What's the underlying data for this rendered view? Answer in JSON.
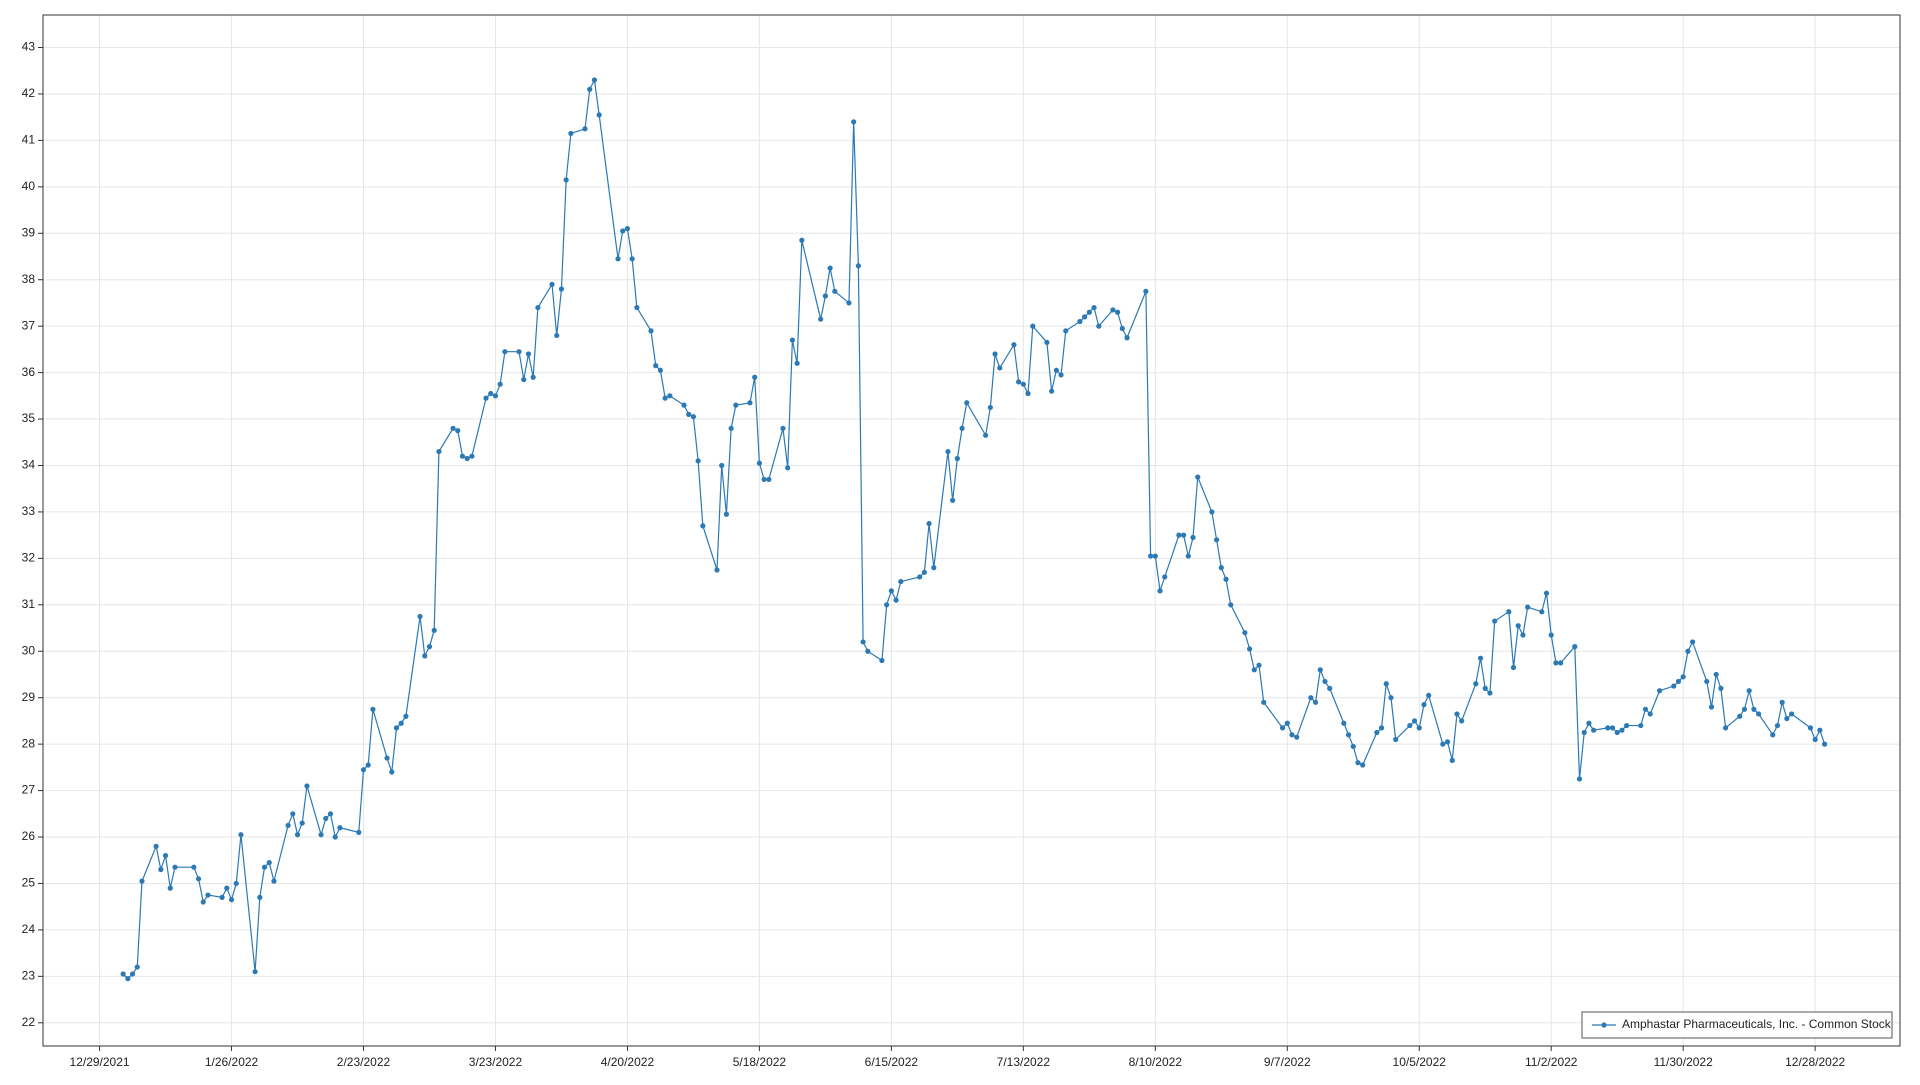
{
  "chart_data": {
    "type": "line",
    "x": [
      "1/3/2022",
      "1/4/2022",
      "1/5/2022",
      "1/6/2022",
      "1/7/2022",
      "1/10/2022",
      "1/11/2022",
      "1/12/2022",
      "1/13/2022",
      "1/14/2022",
      "1/18/2022",
      "1/19/2022",
      "1/20/2022",
      "1/21/2022",
      "1/24/2022",
      "1/25/2022",
      "1/26/2022",
      "1/27/2022",
      "1/28/2022",
      "1/31/2022",
      "2/1/2022",
      "2/2/2022",
      "2/3/2022",
      "2/4/2022",
      "2/7/2022",
      "2/8/2022",
      "2/9/2022",
      "2/10/2022",
      "2/11/2022",
      "2/14/2022",
      "2/15/2022",
      "2/16/2022",
      "2/17/2022",
      "2/18/2022",
      "2/22/2022",
      "2/23/2022",
      "2/24/2022",
      "2/25/2022",
      "2/28/2022",
      "3/1/2022",
      "3/2/2022",
      "3/3/2022",
      "3/4/2022",
      "3/7/2022",
      "3/8/2022",
      "3/9/2022",
      "3/10/2022",
      "3/11/2022",
      "3/14/2022",
      "3/15/2022",
      "3/16/2022",
      "3/17/2022",
      "3/18/2022",
      "3/21/2022",
      "3/22/2022",
      "3/23/2022",
      "3/24/2022",
      "3/25/2022",
      "3/28/2022",
      "3/29/2022",
      "3/30/2022",
      "3/31/2022",
      "4/1/2022",
      "4/4/2022",
      "4/5/2022",
      "4/6/2022",
      "4/7/2022",
      "4/8/2022",
      "4/11/2022",
      "4/12/2022",
      "4/13/2022",
      "4/14/2022",
      "4/18/2022",
      "4/19/2022",
      "4/20/2022",
      "4/21/2022",
      "4/22/2022",
      "4/25/2022",
      "4/26/2022",
      "4/27/2022",
      "4/28/2022",
      "4/29/2022",
      "5/2/2022",
      "5/3/2022",
      "5/4/2022",
      "5/5/2022",
      "5/6/2022",
      "5/9/2022",
      "5/10/2022",
      "5/11/2022",
      "5/12/2022",
      "5/13/2022",
      "5/16/2022",
      "5/17/2022",
      "5/18/2022",
      "5/19/2022",
      "5/20/2022",
      "5/23/2022",
      "5/24/2022",
      "5/25/2022",
      "5/26/2022",
      "5/27/2022",
      "5/31/2022",
      "6/1/2022",
      "6/2/2022",
      "6/3/2022",
      "6/6/2022",
      "6/7/2022",
      "6/8/2022",
      "6/9/2022",
      "6/10/2022",
      "6/13/2022",
      "6/14/2022",
      "6/15/2022",
      "6/16/2022",
      "6/17/2022",
      "6/21/2022",
      "6/22/2022",
      "6/23/2022",
      "6/24/2022",
      "6/27/2022",
      "6/28/2022",
      "6/29/2022",
      "6/30/2022",
      "7/1/2022",
      "7/5/2022",
      "7/6/2022",
      "7/7/2022",
      "7/8/2022",
      "7/11/2022",
      "7/12/2022",
      "7/13/2022",
      "7/14/2022",
      "7/15/2022",
      "7/18/2022",
      "7/19/2022",
      "7/20/2022",
      "7/21/2022",
      "7/22/2022",
      "7/25/2022",
      "7/26/2022",
      "7/27/2022",
      "7/28/2022",
      "7/29/2022",
      "8/1/2022",
      "8/2/2022",
      "8/3/2022",
      "8/4/2022",
      "8/8/2022",
      "8/9/2022",
      "8/10/2022",
      "8/11/2022",
      "8/12/2022",
      "8/15/2022",
      "8/16/2022",
      "8/17/2022",
      "8/18/2022",
      "8/19/2022",
      "8/22/2022",
      "8/23/2022",
      "8/24/2022",
      "8/25/2022",
      "8/26/2022",
      "8/29/2022",
      "8/30/2022",
      "8/31/2022",
      "9/1/2022",
      "9/2/2022",
      "9/6/2022",
      "9/7/2022",
      "9/8/2022",
      "9/9/2022",
      "9/12/2022",
      "9/13/2022",
      "9/14/2022",
      "9/15/2022",
      "9/16/2022",
      "9/19/2022",
      "9/20/2022",
      "9/21/2022",
      "9/22/2022",
      "9/23/2022",
      "9/26/2022",
      "9/27/2022",
      "9/28/2022",
      "9/29/2022",
      "9/30/2022",
      "10/3/2022",
      "10/4/2022",
      "10/5/2022",
      "10/6/2022",
      "10/7/2022",
      "10/10/2022",
      "10/11/2022",
      "10/12/2022",
      "10/13/2022",
      "10/14/2022",
      "10/17/2022",
      "10/18/2022",
      "10/19/2022",
      "10/20/2022",
      "10/21/2022",
      "10/24/2022",
      "10/25/2022",
      "10/26/2022",
      "10/27/2022",
      "10/28/2022",
      "10/31/2022",
      "11/1/2022",
      "11/2/2022",
      "11/3/2022",
      "11/4/2022",
      "11/7/2022",
      "11/8/2022",
      "11/9/2022",
      "11/10/2022",
      "11/11/2022",
      "11/14/2022",
      "11/15/2022",
      "11/16/2022",
      "11/17/2022",
      "11/18/2022",
      "11/21/2022",
      "11/22/2022",
      "11/23/2022",
      "11/25/2022",
      "11/28/2022",
      "11/29/2022",
      "11/30/2022",
      "12/1/2022",
      "12/2/2022",
      "12/5/2022",
      "12/6/2022",
      "12/7/2022",
      "12/8/2022",
      "12/9/2022",
      "12/12/2022",
      "12/13/2022",
      "12/14/2022",
      "12/15/2022",
      "12/16/2022",
      "12/19/2022",
      "12/20/2022",
      "12/21/2022",
      "12/22/2022",
      "12/23/2022",
      "12/27/2022",
      "12/28/2022",
      "12/29/2022",
      "12/30/2022"
    ],
    "series": [
      {
        "name": "Amphastar Pharmaceuticals, Inc. - Common Stock",
        "color": "#2b79b5",
        "values": [
          23.05,
          22.95,
          23.05,
          23.2,
          25.05,
          25.8,
          25.3,
          25.6,
          24.9,
          25.35,
          25.35,
          25.1,
          24.6,
          24.75,
          24.7,
          24.9,
          24.65,
          25.0,
          26.05,
          23.1,
          24.7,
          25.35,
          25.45,
          25.05,
          26.25,
          26.5,
          26.05,
          26.3,
          27.1,
          26.05,
          26.4,
          26.5,
          26.0,
          26.2,
          26.1,
          27.45,
          27.55,
          28.75,
          27.7,
          27.4,
          28.35,
          28.45,
          28.6,
          30.75,
          29.9,
          30.1,
          30.45,
          34.3,
          34.8,
          34.75,
          34.2,
          34.15,
          34.2,
          35.45,
          35.55,
          35.5,
          35.75,
          36.45,
          36.45,
          35.85,
          36.4,
          35.9,
          37.4,
          37.9,
          36.8,
          37.8,
          40.15,
          41.15,
          41.25,
          42.1,
          42.3,
          41.55,
          38.45,
          39.05,
          39.1,
          38.45,
          37.4,
          36.9,
          36.15,
          36.05,
          35.45,
          35.5,
          35.3,
          35.1,
          35.05,
          34.1,
          32.7,
          31.75,
          34.0,
          32.95,
          34.8,
          35.3,
          35.35,
          35.9,
          34.05,
          33.7,
          33.7,
          34.8,
          33.95,
          36.7,
          36.2,
          38.85,
          37.15,
          37.65,
          38.25,
          37.75,
          37.5,
          41.4,
          38.3,
          30.2,
          30.0,
          29.8,
          31.0,
          31.3,
          31.1,
          31.5,
          31.6,
          31.7,
          32.75,
          31.8,
          34.3,
          33.25,
          34.15,
          34.8,
          35.35,
          34.65,
          35.25,
          36.4,
          36.1,
          36.6,
          35.8,
          35.75,
          35.55,
          37.0,
          36.65,
          35.6,
          36.05,
          35.95,
          36.9,
          37.1,
          37.2,
          37.3,
          37.4,
          37.0,
          37.35,
          37.3,
          36.95,
          36.75,
          37.75,
          32.05,
          32.05,
          31.3,
          31.6,
          32.5,
          32.5,
          32.05,
          32.45,
          33.75,
          33.0,
          32.4,
          31.8,
          31.55,
          31.0,
          30.4,
          30.05,
          29.6,
          29.7,
          28.9,
          28.35,
          28.45,
          28.2,
          28.15,
          29.0,
          28.9,
          29.6,
          29.35,
          29.2,
          28.45,
          28.2,
          27.95,
          27.6,
          27.55,
          28.25,
          28.35,
          29.3,
          29.0,
          28.1,
          28.4,
          28.5,
          28.35,
          28.85,
          29.05,
          28.0,
          28.05,
          27.65,
          28.65,
          28.5,
          29.3,
          29.85,
          29.2,
          29.1,
          30.65,
          30.85,
          29.65,
          30.55,
          30.35,
          30.95,
          30.85,
          31.25,
          30.35,
          29.75,
          29.75,
          30.1,
          27.25,
          28.25,
          28.45,
          28.3,
          28.35,
          28.35,
          28.25,
          28.3,
          28.4,
          28.4,
          28.75,
          28.65,
          29.15,
          29.25,
          29.35,
          29.45,
          30.0,
          30.2,
          29.35,
          28.8,
          29.5,
          29.2,
          28.35,
          28.6,
          28.75,
          29.15,
          28.75,
          28.65,
          28.2,
          28.4,
          28.9,
          28.55,
          28.65,
          28.35,
          28.1,
          28.3,
          28.0
        ]
      }
    ],
    "xlim": [
      "12/17/2021",
      "1/15/2023"
    ],
    "xticks": [
      "12/29/2021",
      "1/26/2022",
      "2/23/2022",
      "3/23/2022",
      "4/20/2022",
      "5/18/2022",
      "6/15/2022",
      "7/13/2022",
      "8/10/2022",
      "9/7/2022",
      "10/5/2022",
      "11/2/2022",
      "11/30/2022",
      "12/28/2022"
    ],
    "ylim": [
      21.5,
      43.7
    ],
    "yticks": [
      22,
      23,
      24,
      25,
      26,
      27,
      28,
      29,
      30,
      31,
      32,
      33,
      34,
      35,
      36,
      37,
      38,
      39,
      40,
      41,
      42,
      43
    ],
    "grid": true,
    "legend": "lower right"
  }
}
